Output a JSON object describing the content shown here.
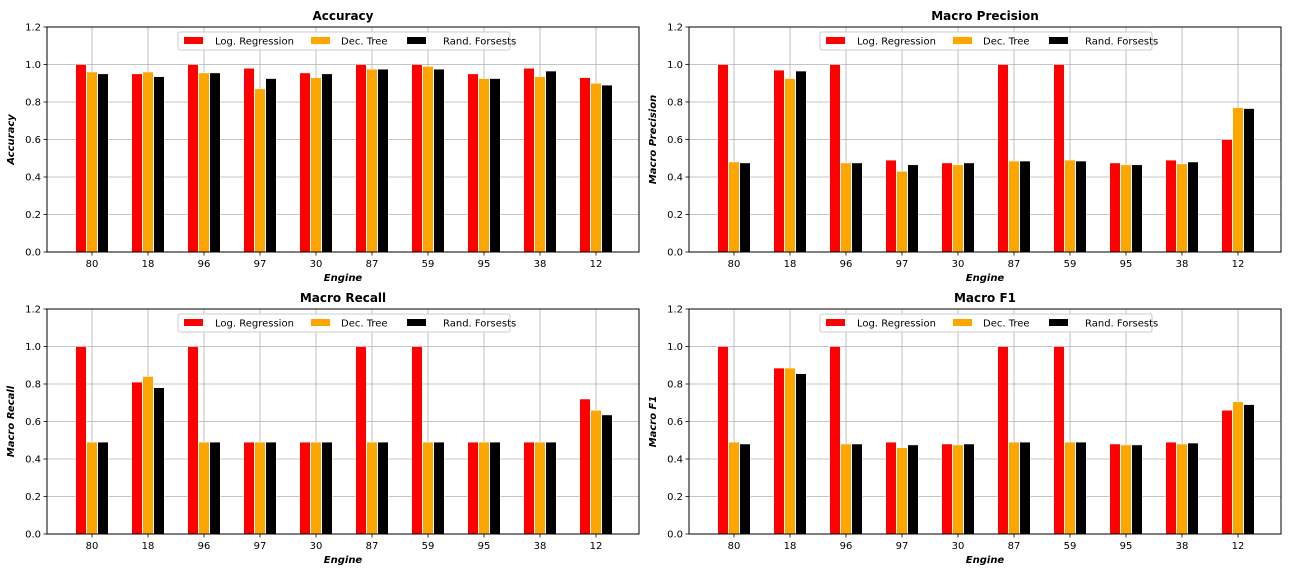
{
  "chart_data": [
    {
      "type": "bar",
      "title": "Accuracy",
      "xlabel": "Engine",
      "ylabel": "Accuracy",
      "categories": [
        "80",
        "18",
        "96",
        "97",
        "30",
        "87",
        "59",
        "95",
        "38",
        "12"
      ],
      "ylim": [
        0,
        1.2
      ],
      "yticks": [
        "0.0",
        "0.2",
        "0.4",
        "0.6",
        "0.8",
        "1.0",
        "1.2"
      ],
      "grid": true,
      "legend_position": "top-center",
      "series": [
        {
          "name": "Log. Regression",
          "color": "#ff0000",
          "values": [
            1.0,
            0.95,
            1.0,
            0.98,
            0.955,
            1.0,
            1.0,
            0.95,
            0.98,
            0.93
          ]
        },
        {
          "name": "Dec. Tree",
          "color": "#ffa500",
          "values": [
            0.96,
            0.96,
            0.955,
            0.87,
            0.93,
            0.975,
            0.99,
            0.925,
            0.935,
            0.9
          ]
        },
        {
          "name": "Rand. Forsests",
          "color": "#000000",
          "values": [
            0.95,
            0.935,
            0.955,
            0.925,
            0.95,
            0.975,
            0.975,
            0.925,
            0.965,
            0.89
          ]
        }
      ]
    },
    {
      "type": "bar",
      "title": "Macro Precision",
      "xlabel": "Engine",
      "ylabel": "Macro Precision",
      "categories": [
        "80",
        "18",
        "96",
        "97",
        "30",
        "87",
        "59",
        "95",
        "38",
        "12"
      ],
      "ylim": [
        0,
        1.2
      ],
      "yticks": [
        "0.0",
        "0.2",
        "0.4",
        "0.6",
        "0.8",
        "1.0",
        "1.2"
      ],
      "grid": true,
      "legend_position": "top-center",
      "series": [
        {
          "name": "Log. Regression",
          "color": "#ff0000",
          "values": [
            1.0,
            0.97,
            1.0,
            0.49,
            0.475,
            1.0,
            1.0,
            0.475,
            0.49,
            0.6
          ]
        },
        {
          "name": "Dec. Tree",
          "color": "#ffa500",
          "values": [
            0.48,
            0.925,
            0.475,
            0.43,
            0.465,
            0.485,
            0.49,
            0.465,
            0.47,
            0.77
          ]
        },
        {
          "name": "Rand. Forsests",
          "color": "#000000",
          "values": [
            0.475,
            0.965,
            0.475,
            0.465,
            0.475,
            0.485,
            0.485,
            0.465,
            0.48,
            0.765
          ]
        }
      ]
    },
    {
      "type": "bar",
      "title": "Macro Recall",
      "xlabel": "Engine",
      "ylabel": "Macro Recall",
      "categories": [
        "80",
        "18",
        "96",
        "97",
        "30",
        "87",
        "59",
        "95",
        "38",
        "12"
      ],
      "ylim": [
        0,
        1.2
      ],
      "yticks": [
        "0.0",
        "0.2",
        "0.4",
        "0.6",
        "0.8",
        "1.0",
        "1.2"
      ],
      "grid": true,
      "legend_position": "top-center",
      "series": [
        {
          "name": "Log. Regression",
          "color": "#ff0000",
          "values": [
            1.0,
            0.81,
            1.0,
            0.49,
            0.49,
            1.0,
            1.0,
            0.49,
            0.49,
            0.72
          ]
        },
        {
          "name": "Dec. Tree",
          "color": "#ffa500",
          "values": [
            0.49,
            0.84,
            0.49,
            0.49,
            0.49,
            0.49,
            0.49,
            0.49,
            0.49,
            0.66
          ]
        },
        {
          "name": "Rand. Forsests",
          "color": "#000000",
          "values": [
            0.49,
            0.78,
            0.49,
            0.49,
            0.49,
            0.49,
            0.49,
            0.49,
            0.49,
            0.635
          ]
        }
      ]
    },
    {
      "type": "bar",
      "title": "Macro F1",
      "xlabel": "Engine",
      "ylabel": "Macro F1",
      "categories": [
        "80",
        "18",
        "96",
        "97",
        "30",
        "87",
        "59",
        "95",
        "38",
        "12"
      ],
      "ylim": [
        0,
        1.2
      ],
      "yticks": [
        "0.0",
        "0.2",
        "0.4",
        "0.6",
        "0.8",
        "1.0",
        "1.2"
      ],
      "grid": true,
      "legend_position": "top-center",
      "series": [
        {
          "name": "Log. Regression",
          "color": "#ff0000",
          "values": [
            1.0,
            0.885,
            1.0,
            0.49,
            0.48,
            1.0,
            1.0,
            0.48,
            0.49,
            0.66
          ]
        },
        {
          "name": "Dec. Tree",
          "color": "#ffa500",
          "values": [
            0.49,
            0.885,
            0.48,
            0.46,
            0.475,
            0.49,
            0.49,
            0.475,
            0.48,
            0.705
          ]
        },
        {
          "name": "Rand. Forsests",
          "color": "#000000",
          "values": [
            0.48,
            0.855,
            0.48,
            0.475,
            0.48,
            0.49,
            0.49,
            0.475,
            0.485,
            0.69
          ]
        }
      ]
    }
  ]
}
